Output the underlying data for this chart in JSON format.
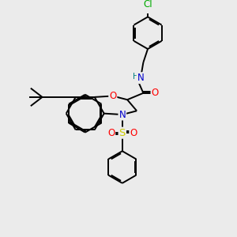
{
  "bg_color": "#ebebeb",
  "bond_color": "#000000",
  "atom_colors": {
    "O": "#ff0000",
    "N": "#0000cc",
    "S": "#cccc00",
    "Cl": "#00aa00",
    "H": "#008080",
    "C": "#000000"
  },
  "font_size": 8.5,
  "line_width": 1.4
}
